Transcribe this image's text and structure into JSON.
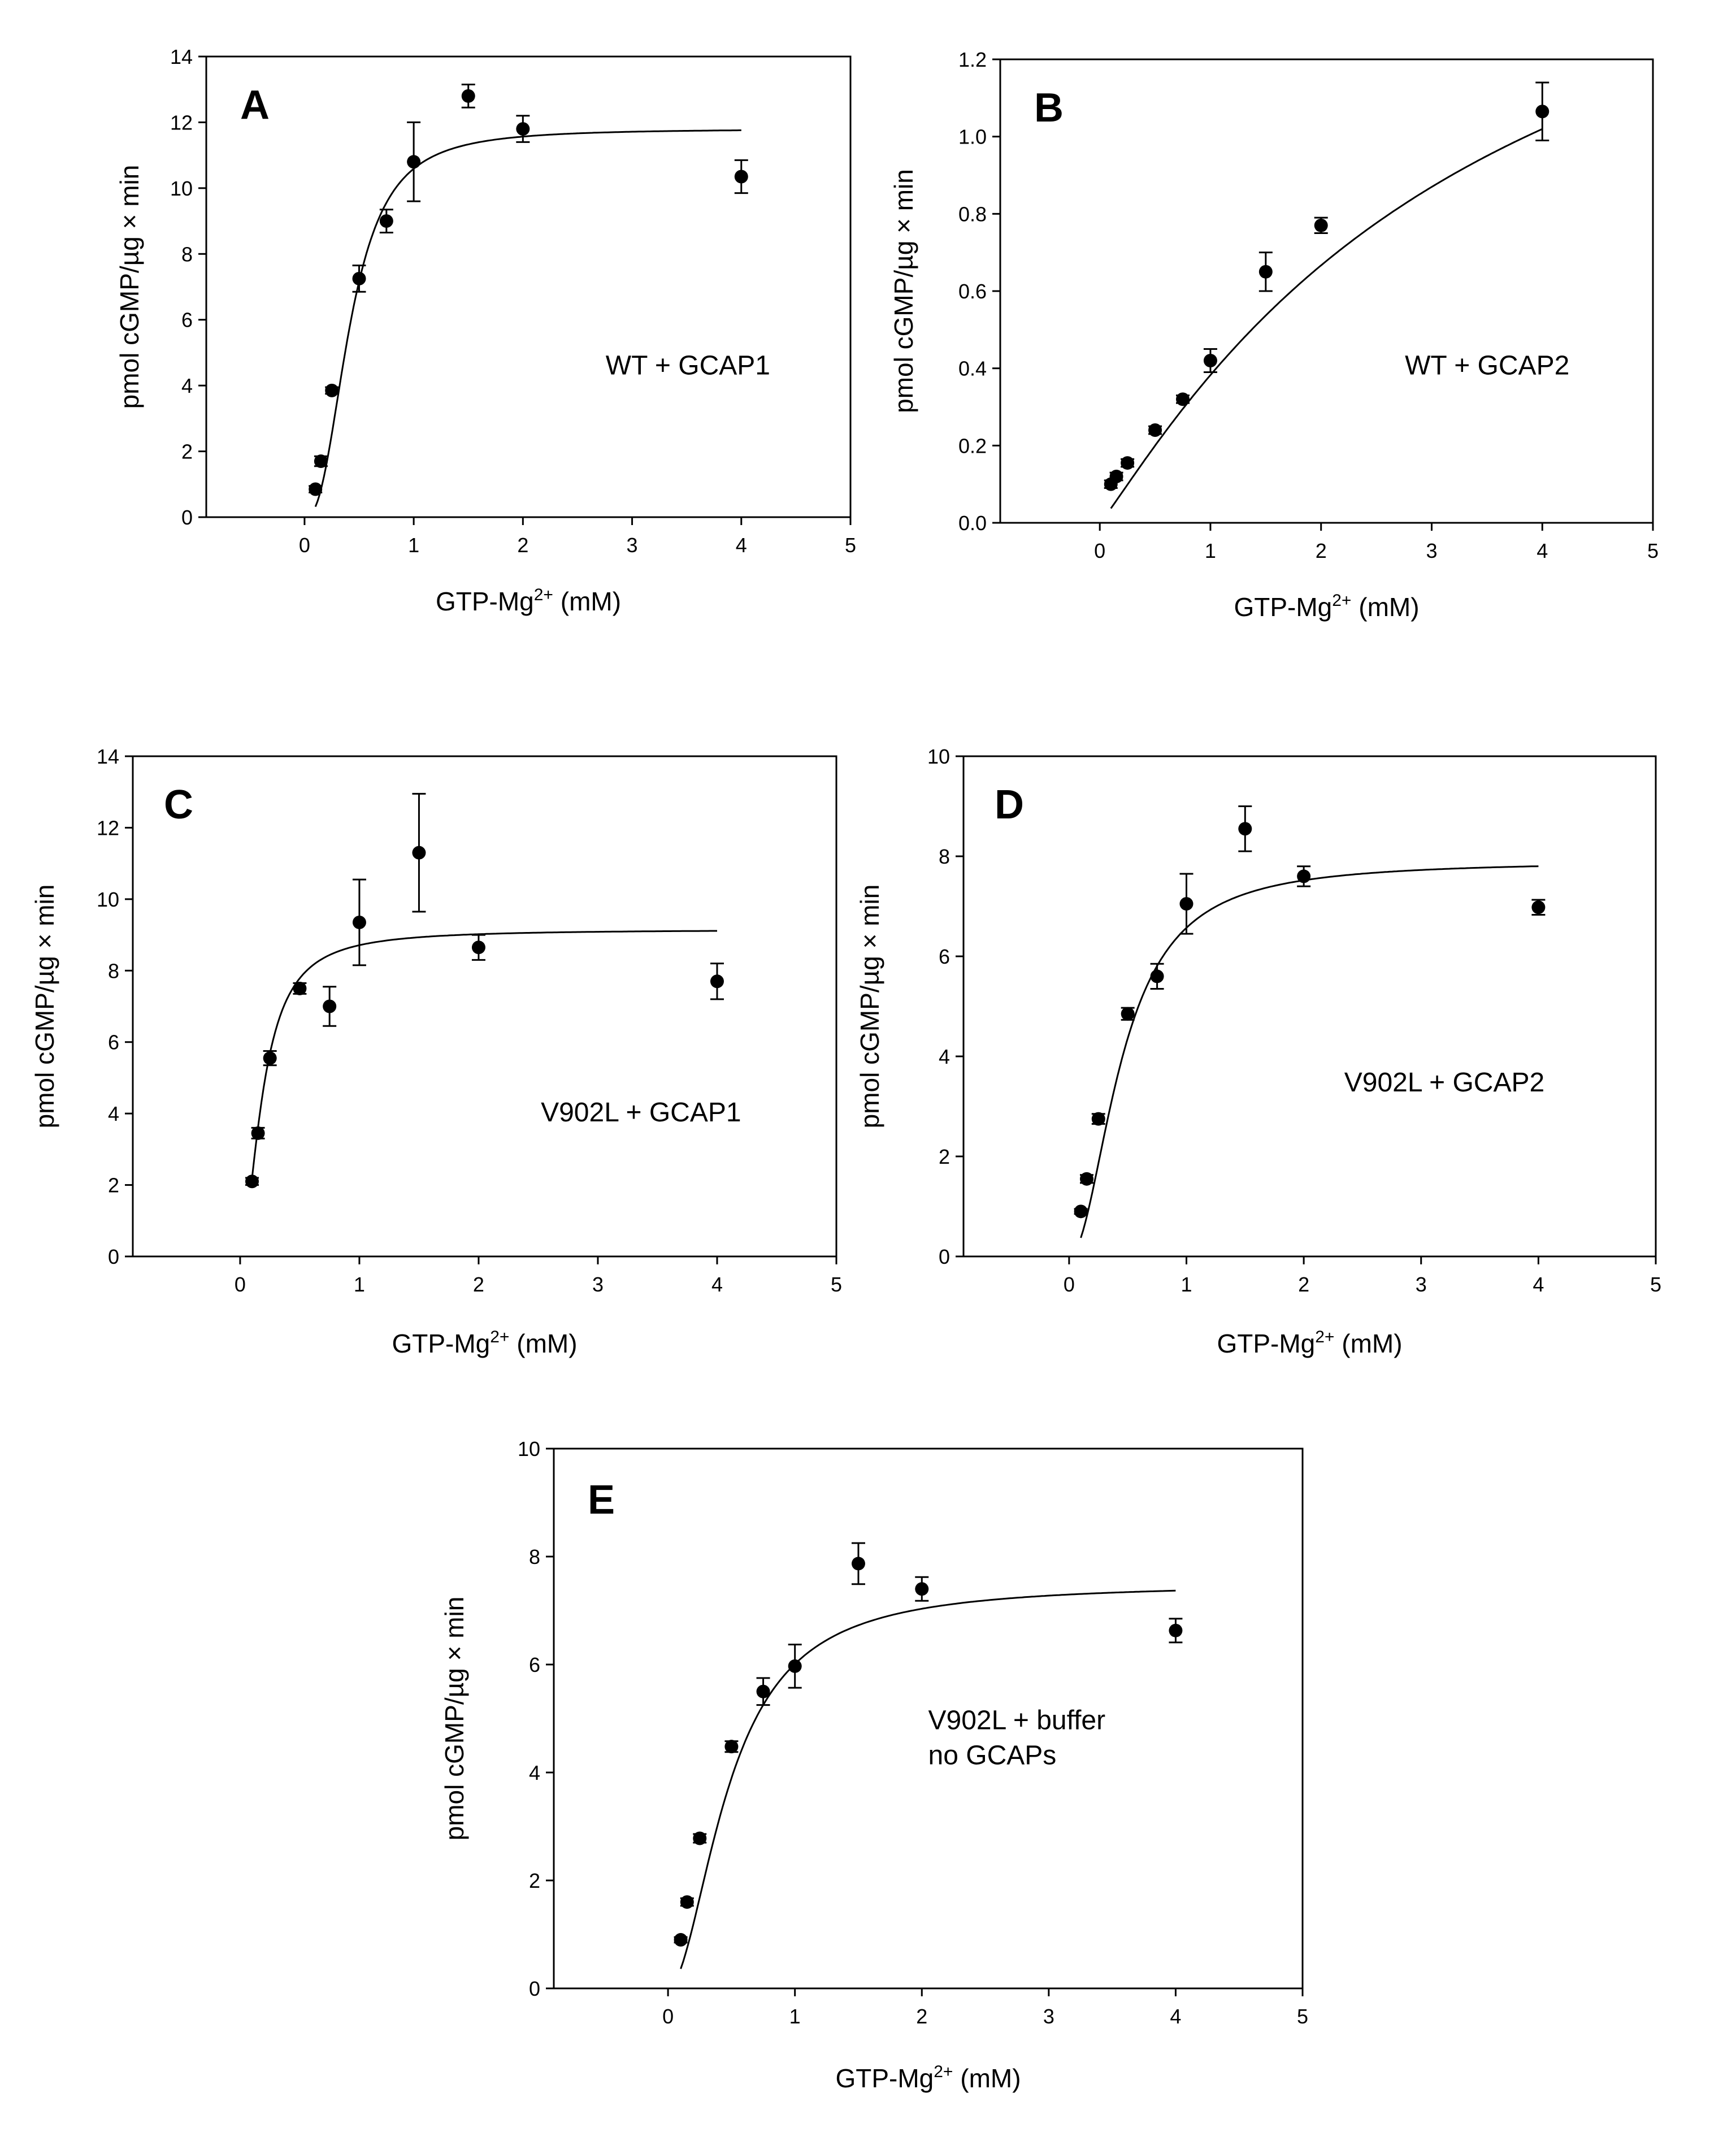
{
  "chart_data": [
    {
      "type": "scatter",
      "panel": "A",
      "annotation": [
        "WT + GCAP1"
      ],
      "xlabel": "GTP-Mg",
      "xlabel_sup": "2+",
      "xlabel_unit": "(mM)",
      "ylabel": "pmol cGMP/µg × min",
      "xlim": [
        -0.9,
        5
      ],
      "ylim": [
        0,
        14
      ],
      "xticks": [
        0,
        1,
        2,
        3,
        4,
        5
      ],
      "yticks": [
        0,
        2,
        4,
        6,
        8,
        10,
        12,
        14
      ],
      "ytick_labels": [
        "0",
        "2",
        "4",
        "6",
        "8",
        "10",
        "12",
        "14"
      ],
      "points": [
        {
          "x": 0.1,
          "y": 0.85,
          "err": 0.1
        },
        {
          "x": 0.15,
          "y": 1.7,
          "err": 0.15
        },
        {
          "x": 0.25,
          "y": 3.85,
          "err": 0.1
        },
        {
          "x": 0.5,
          "y": 7.25,
          "err": 0.4
        },
        {
          "x": 0.75,
          "y": 9.0,
          "err": 0.35
        },
        {
          "x": 1.0,
          "y": 10.8,
          "err": 1.2
        },
        {
          "x": 1.5,
          "y": 12.8,
          "err": 0.35
        },
        {
          "x": 2.0,
          "y": 11.8,
          "err": 0.4
        },
        {
          "x": 4.0,
          "y": 10.35,
          "err": 0.5
        }
      ],
      "fit": {
        "model": "hill",
        "vmax": 11.8,
        "k": 0.42,
        "n": 2.5,
        "x_from": 0.1,
        "x_to": 4.0
      }
    },
    {
      "type": "scatter",
      "panel": "B",
      "annotation": [
        "WT + GCAP2"
      ],
      "xlabel": "GTP-Mg",
      "xlabel_sup": "2+",
      "xlabel_unit": "(mM)",
      "ylabel": "pmol cGMP/µg × min",
      "xlim": [
        -0.9,
        5
      ],
      "ylim": [
        0,
        1.2
      ],
      "xticks": [
        0,
        1,
        2,
        3,
        4,
        5
      ],
      "yticks": [
        0,
        0.2,
        0.4,
        0.6,
        0.8,
        1.0,
        1.2
      ],
      "ytick_labels": [
        "0.0",
        "0.2",
        "0.4",
        "0.6",
        "0.8",
        "1.0",
        "1.2"
      ],
      "points": [
        {
          "x": 0.1,
          "y": 0.1,
          "err": 0.01
        },
        {
          "x": 0.15,
          "y": 0.12,
          "err": 0.01
        },
        {
          "x": 0.25,
          "y": 0.155,
          "err": 0.01
        },
        {
          "x": 0.5,
          "y": 0.24,
          "err": 0.01
        },
        {
          "x": 0.75,
          "y": 0.32,
          "err": 0.01
        },
        {
          "x": 1.0,
          "y": 0.42,
          "err": 0.03
        },
        {
          "x": 1.5,
          "y": 0.65,
          "err": 0.05
        },
        {
          "x": 2.0,
          "y": 0.77,
          "err": 0.02
        },
        {
          "x": 4.0,
          "y": 1.065,
          "err": 0.075
        }
      ],
      "fit": {
        "model": "hill",
        "vmax": 1.9,
        "k": 3.5,
        "n": 1.1,
        "x_from": 0.1,
        "x_to": 4.0
      }
    },
    {
      "type": "scatter",
      "panel": "C",
      "annotation": [
        "V902L + GCAP1"
      ],
      "xlabel": "GTP-Mg",
      "xlabel_sup": "2+",
      "xlabel_unit": "(mM)",
      "ylabel": "pmol cGMP/µg × min",
      "xlim": [
        -0.9,
        5
      ],
      "ylim": [
        0,
        14
      ],
      "xticks": [
        0,
        1,
        2,
        3,
        4,
        5
      ],
      "yticks": [
        0,
        2,
        4,
        6,
        8,
        10,
        12,
        14
      ],
      "ytick_labels": [
        "0",
        "2",
        "4",
        "6",
        "8",
        "10",
        "12",
        "14"
      ],
      "points": [
        {
          "x": 0.1,
          "y": 2.1,
          "err": 0.1
        },
        {
          "x": 0.15,
          "y": 3.45,
          "err": 0.15
        },
        {
          "x": 0.25,
          "y": 5.55,
          "err": 0.2
        },
        {
          "x": 0.5,
          "y": 7.5,
          "err": 0.15
        },
        {
          "x": 0.75,
          "y": 7.0,
          "err": 0.55
        },
        {
          "x": 1.0,
          "y": 9.35,
          "err": 1.2
        },
        {
          "x": 1.5,
          "y": 11.3,
          "err": 1.65
        },
        {
          "x": 2.0,
          "y": 8.65,
          "err": 0.35
        },
        {
          "x": 4.0,
          "y": 7.7,
          "err": 0.5
        }
      ],
      "fit": {
        "model": "hill",
        "vmax": 9.15,
        "k": 0.19,
        "n": 1.8,
        "x_from": 0.1,
        "x_to": 4.0
      }
    },
    {
      "type": "scatter",
      "panel": "D",
      "annotation": [
        "V902L + GCAP2"
      ],
      "xlabel": "GTP-Mg",
      "xlabel_sup": "2+",
      "xlabel_unit": "(mM)",
      "ylabel": "pmol cGMP/µg × min",
      "xlim": [
        -0.9,
        5
      ],
      "ylim": [
        0,
        10
      ],
      "xticks": [
        0,
        1,
        2,
        3,
        4,
        5
      ],
      "yticks": [
        0,
        2,
        4,
        6,
        8,
        10
      ],
      "ytick_labels": [
        "0",
        "2",
        "4",
        "6",
        "8",
        "10"
      ],
      "points": [
        {
          "x": 0.1,
          "y": 0.9,
          "err": 0.05
        },
        {
          "x": 0.15,
          "y": 1.55,
          "err": 0.08
        },
        {
          "x": 0.25,
          "y": 2.75,
          "err": 0.1
        },
        {
          "x": 0.5,
          "y": 4.85,
          "err": 0.12
        },
        {
          "x": 0.75,
          "y": 5.6,
          "err": 0.25
        },
        {
          "x": 1.0,
          "y": 7.05,
          "err": 0.6
        },
        {
          "x": 1.5,
          "y": 8.55,
          "err": 0.45
        },
        {
          "x": 2.0,
          "y": 7.6,
          "err": 0.2
        },
        {
          "x": 4.0,
          "y": 6.98,
          "err": 0.15
        }
      ],
      "fit": {
        "model": "hill",
        "vmax": 7.9,
        "k": 0.45,
        "n": 2.0,
        "x_from": 0.1,
        "x_to": 4.0
      }
    },
    {
      "type": "scatter",
      "panel": "E",
      "annotation": [
        "V902L + buffer",
        "no GCAPs"
      ],
      "xlabel": "GTP-Mg",
      "xlabel_sup": "2+",
      "xlabel_unit": "(mM)",
      "ylabel": "pmol cGMP/µg × min",
      "xlim": [
        -0.9,
        5
      ],
      "ylim": [
        0,
        10
      ],
      "xticks": [
        0,
        1,
        2,
        3,
        4,
        5
      ],
      "yticks": [
        0,
        2,
        4,
        6,
        8,
        10
      ],
      "ytick_labels": [
        "0",
        "2",
        "4",
        "6",
        "8",
        "10"
      ],
      "points": [
        {
          "x": 0.1,
          "y": 0.9,
          "err": 0.05
        },
        {
          "x": 0.15,
          "y": 1.6,
          "err": 0.07
        },
        {
          "x": 0.25,
          "y": 2.78,
          "err": 0.08
        },
        {
          "x": 0.5,
          "y": 4.48,
          "err": 0.1
        },
        {
          "x": 0.75,
          "y": 5.5,
          "err": 0.25
        },
        {
          "x": 1.0,
          "y": 5.97,
          "err": 0.4
        },
        {
          "x": 1.5,
          "y": 7.87,
          "err": 0.38
        },
        {
          "x": 2.0,
          "y": 7.4,
          "err": 0.22
        },
        {
          "x": 4.0,
          "y": 6.63,
          "err": 0.22
        }
      ],
      "fit": {
        "model": "hill",
        "vmax": 7.5,
        "k": 0.48,
        "n": 1.9,
        "x_from": 0.1,
        "x_to": 4.0
      }
    }
  ]
}
